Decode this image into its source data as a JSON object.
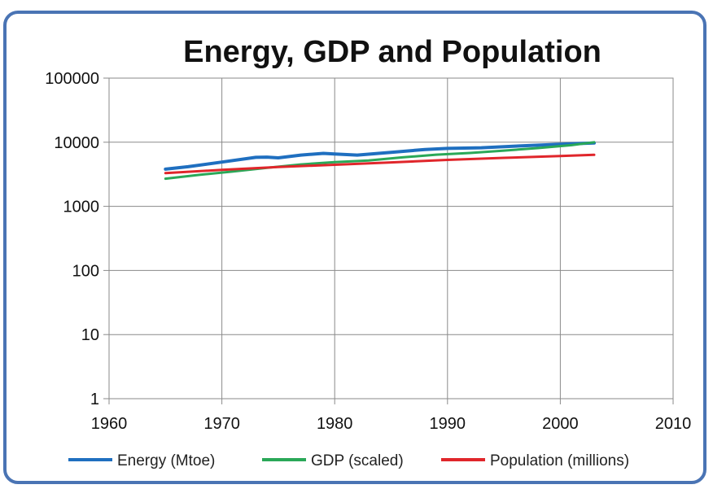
{
  "chart_data": {
    "type": "line",
    "title": "Energy, GDP and Population",
    "xlabel": "",
    "ylabel": "",
    "xlim": [
      1960,
      2010
    ],
    "ylim": [
      1,
      100000
    ],
    "y_scale": "log",
    "grid": true,
    "legend_position": "bottom",
    "x_ticks": [
      "1960",
      "1970",
      "1980",
      "1990",
      "2000",
      "2010"
    ],
    "y_ticks": [
      "1",
      "10",
      "100",
      "1000",
      "10000",
      "100000"
    ],
    "series": [
      {
        "name": "Energy (Mtoe)",
        "color": "#1f6fc0",
        "x": [
          1965,
          1967,
          1970,
          1973,
          1974,
          1975,
          1977,
          1979,
          1980,
          1982,
          1983,
          1985,
          1988,
          1990,
          1993,
          1996,
          2000,
          2003
        ],
        "y": [
          3800,
          4150,
          4900,
          5800,
          5850,
          5700,
          6300,
          6700,
          6550,
          6300,
          6500,
          6950,
          7700,
          8000,
          8200,
          8700,
          9300,
          9700
        ]
      },
      {
        "name": "GDP (scaled)",
        "color": "#2aa858",
        "x": [
          1965,
          1968,
          1971,
          1974,
          1977,
          1980,
          1983,
          1986,
          1989,
          1992,
          1995,
          1998,
          2001,
          2003
        ],
        "y": [
          2700,
          3100,
          3500,
          4000,
          4500,
          4900,
          5200,
          5800,
          6400,
          6800,
          7400,
          8100,
          9000,
          10000
        ]
      },
      {
        "name": "Population (millions)",
        "color": "#e0262b",
        "x": [
          1965,
          1970,
          1975,
          1980,
          1985,
          1990,
          1995,
          2000,
          2003
        ],
        "y": [
          3300,
          3700,
          4100,
          4450,
          4850,
          5300,
          5700,
          6100,
          6350
        ]
      }
    ]
  }
}
